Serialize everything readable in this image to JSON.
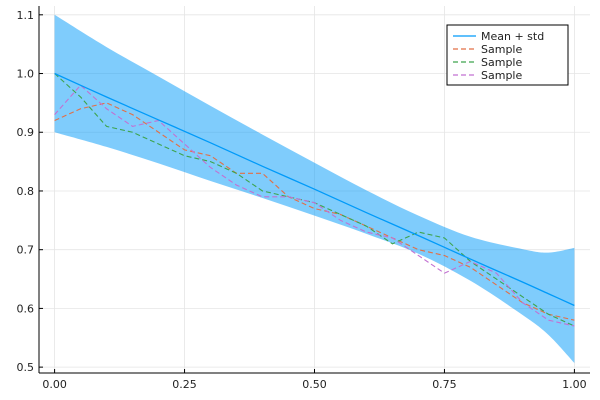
{
  "chart_data": {
    "type": "line",
    "title": "",
    "xlabel": "",
    "ylabel": "",
    "xlim": [
      -0.03,
      1.03
    ],
    "ylim": [
      0.49,
      1.115
    ],
    "xticks": [
      0.0,
      0.25,
      0.5,
      0.75,
      1.0
    ],
    "xtick_labels": [
      "0.00",
      "0.25",
      "0.50",
      "0.75",
      "1.00"
    ],
    "yticks": [
      0.5,
      0.6,
      0.7,
      0.8,
      0.9,
      1.0,
      1.1
    ],
    "ytick_labels": [
      "0.5",
      "0.6",
      "0.7",
      "0.8",
      "0.9",
      "1.0",
      "1.1"
    ],
    "grid": true,
    "legend_position": "top-right",
    "band": {
      "name": "Mean + std",
      "color": "#009af9",
      "fill_color": "#009af9",
      "fill_opacity": 0.5,
      "x": [
        0.0,
        0.1,
        0.2,
        0.3,
        0.4,
        0.5,
        0.6,
        0.7,
        0.8,
        0.9,
        0.95,
        1.0
      ],
      "mean": [
        1.0,
        0.96,
        0.921,
        0.882,
        0.842,
        0.803,
        0.763,
        0.724,
        0.684,
        0.645,
        0.625,
        0.605
      ],
      "upper": [
        1.1,
        1.045,
        0.995,
        0.945,
        0.896,
        0.848,
        0.801,
        0.758,
        0.722,
        0.701,
        0.695,
        0.703
      ],
      "lower": [
        0.9,
        0.875,
        0.847,
        0.817,
        0.788,
        0.758,
        0.727,
        0.693,
        0.647,
        0.589,
        0.555,
        0.507
      ]
    },
    "series": [
      {
        "name": "Sample",
        "color": "#e26f46",
        "x": [
          0.0,
          0.05,
          0.1,
          0.15,
          0.2,
          0.25,
          0.3,
          0.35,
          0.4,
          0.45,
          0.5,
          0.55,
          0.6,
          0.65,
          0.7,
          0.75,
          0.8,
          0.85,
          0.9,
          0.95,
          1.0
        ],
        "y": [
          0.92,
          0.94,
          0.95,
          0.93,
          0.9,
          0.87,
          0.86,
          0.83,
          0.83,
          0.79,
          0.77,
          0.76,
          0.74,
          0.72,
          0.7,
          0.69,
          0.67,
          0.64,
          0.61,
          0.59,
          0.58
        ]
      },
      {
        "name": "Sample",
        "color": "#3da44d",
        "x": [
          0.0,
          0.05,
          0.1,
          0.15,
          0.2,
          0.25,
          0.3,
          0.35,
          0.4,
          0.45,
          0.5,
          0.55,
          0.6,
          0.65,
          0.7,
          0.75,
          0.8,
          0.85,
          0.9,
          0.95,
          1.0
        ],
        "y": [
          1.0,
          0.96,
          0.91,
          0.9,
          0.88,
          0.86,
          0.85,
          0.83,
          0.8,
          0.79,
          0.78,
          0.76,
          0.74,
          0.71,
          0.73,
          0.72,
          0.68,
          0.65,
          0.62,
          0.59,
          0.57
        ]
      },
      {
        "name": "Sample",
        "color": "#c271d2",
        "x": [
          0.0,
          0.05,
          0.1,
          0.15,
          0.2,
          0.25,
          0.3,
          0.35,
          0.4,
          0.45,
          0.5,
          0.55,
          0.6,
          0.65,
          0.7,
          0.75,
          0.8,
          0.85,
          0.9,
          0.95,
          1.0
        ],
        "y": [
          0.93,
          0.98,
          0.94,
          0.91,
          0.92,
          0.88,
          0.84,
          0.81,
          0.79,
          0.79,
          0.78,
          0.75,
          0.73,
          0.72,
          0.69,
          0.66,
          0.68,
          0.66,
          0.61,
          0.58,
          0.57
        ]
      }
    ]
  }
}
